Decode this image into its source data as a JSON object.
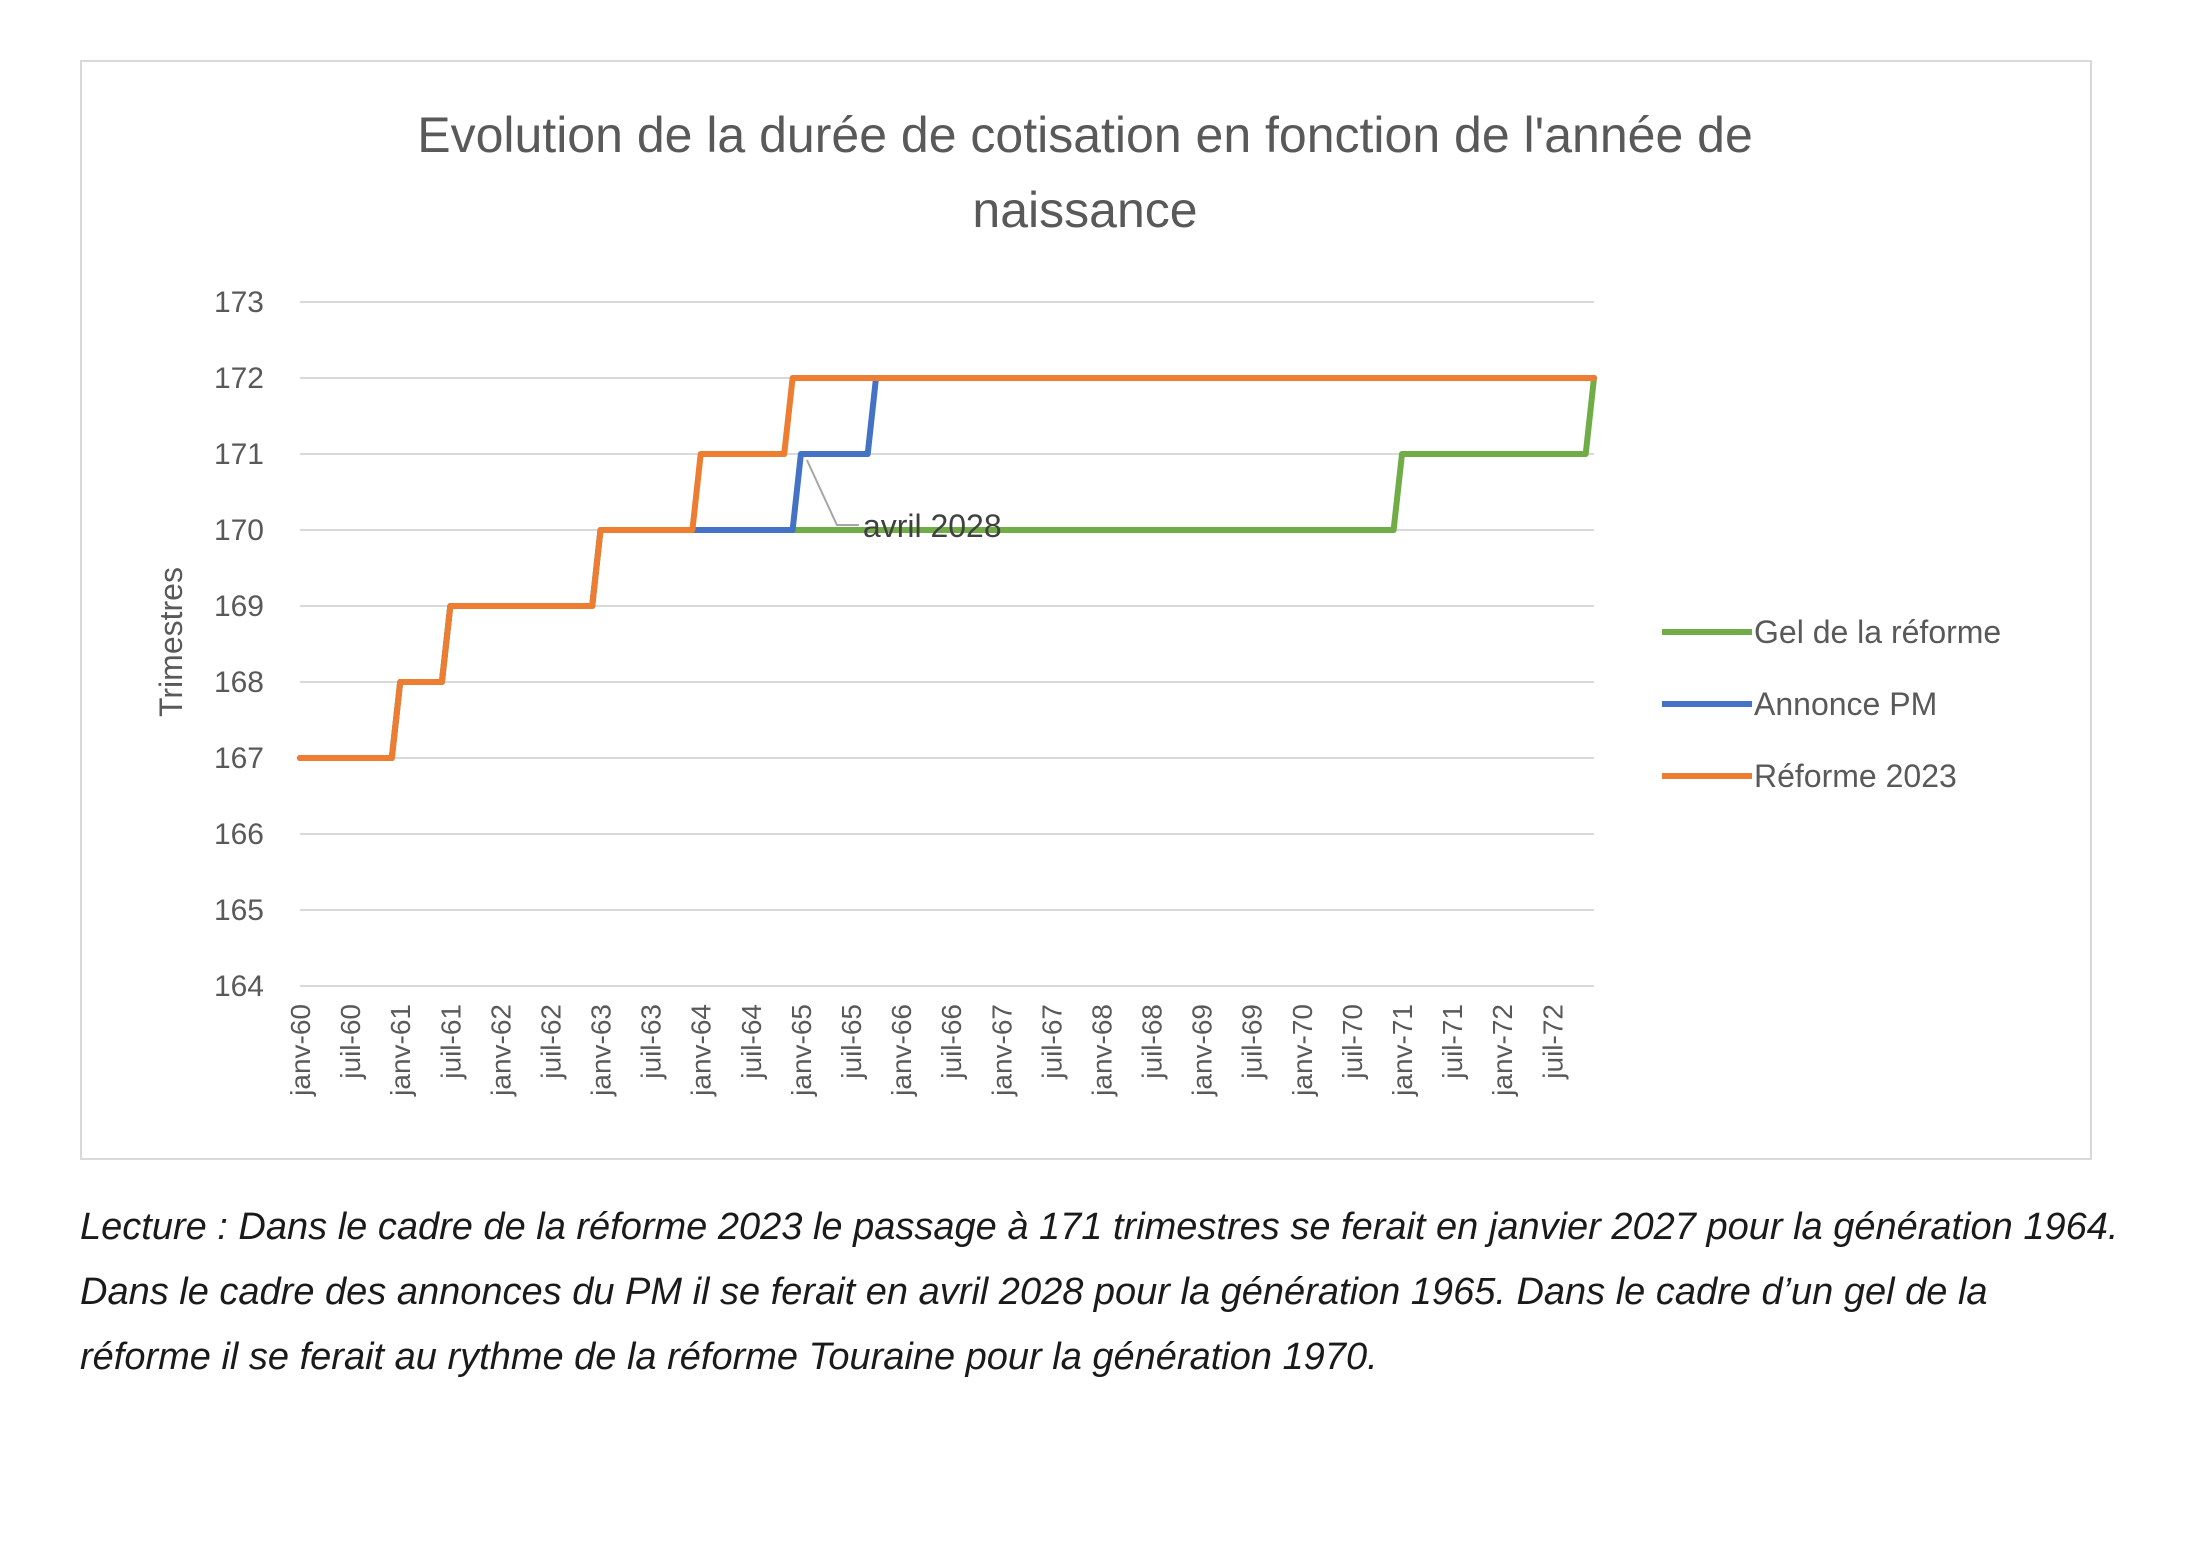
{
  "chart_data": {
    "type": "line",
    "title_lines": [
      "Evolution de la durée de cotisation en fonction de l'année de",
      "naissance"
    ],
    "ylabel": "Trimestres",
    "xlabel": "",
    "ylim": [
      164,
      173
    ],
    "y_ticks": [
      "164",
      "165",
      "166",
      "167",
      "168",
      "169",
      "170",
      "171",
      "172",
      "173"
    ],
    "x_tick_labels": [
      "janv-60",
      "juil-60",
      "janv-61",
      "juil-61",
      "janv-62",
      "juil-62",
      "janv-63",
      "juil-63",
      "janv-64",
      "juil-64",
      "janv-65",
      "juil-65",
      "janv-66",
      "juil-66",
      "janv-67",
      "juil-67",
      "janv-68",
      "juil-68",
      "janv-69",
      "juil-69",
      "janv-70",
      "juil-70",
      "janv-71",
      "juil-71",
      "janv-72",
      "juil-72"
    ],
    "x_range": [
      "1960-01",
      "1972-12"
    ],
    "grid": "horizontal",
    "legend_position": "right",
    "series": [
      {
        "name": "Gel de la réforme",
        "color": "#70ad47",
        "points": [
          [
            "1960-01",
            167
          ],
          [
            "1960-12",
            167
          ],
          [
            "1961-01",
            168
          ],
          [
            "1961-06",
            168
          ],
          [
            "1961-07",
            169
          ],
          [
            "1962-12",
            169
          ],
          [
            "1963-01",
            170
          ],
          [
            "1970-12",
            170
          ],
          [
            "1971-01",
            171
          ],
          [
            "1972-11",
            171
          ],
          [
            "1972-12",
            172
          ]
        ]
      },
      {
        "name": "Annonce PM",
        "color": "#4472c4",
        "points": [
          [
            "1960-01",
            167
          ],
          [
            "1960-12",
            167
          ],
          [
            "1961-01",
            168
          ],
          [
            "1961-06",
            168
          ],
          [
            "1961-07",
            169
          ],
          [
            "1962-12",
            169
          ],
          [
            "1963-01",
            170
          ],
          [
            "1964-12",
            170
          ],
          [
            "1965-01",
            171
          ],
          [
            "1965-09",
            171
          ],
          [
            "1965-10",
            172
          ],
          [
            "1972-12",
            172
          ]
        ]
      },
      {
        "name": "Réforme 2023",
        "color": "#ed7d31",
        "points": [
          [
            "1960-01",
            167
          ],
          [
            "1960-12",
            167
          ],
          [
            "1961-01",
            168
          ],
          [
            "1961-06",
            168
          ],
          [
            "1961-07",
            169
          ],
          [
            "1962-12",
            169
          ],
          [
            "1963-01",
            170
          ],
          [
            "1963-12",
            170
          ],
          [
            "1964-01",
            171
          ],
          [
            "1964-11",
            171
          ],
          [
            "1964-12",
            172
          ],
          [
            "1972-12",
            172
          ]
        ]
      }
    ],
    "annotations": [
      {
        "text": "avril 2028",
        "x": "1965-01",
        "y": 171
      }
    ]
  },
  "caption": "Lecture : Dans le cadre de la réforme 2023 le passage à 171 trimestres se ferait en janvier 2027 pour la génération 1964. Dans le cadre des annonces du PM il se ferait en avril 2028 pour la génération 1965. Dans le cadre d’un gel de la réforme il se ferait au rythme de la réforme Touraine pour la génération 1970."
}
